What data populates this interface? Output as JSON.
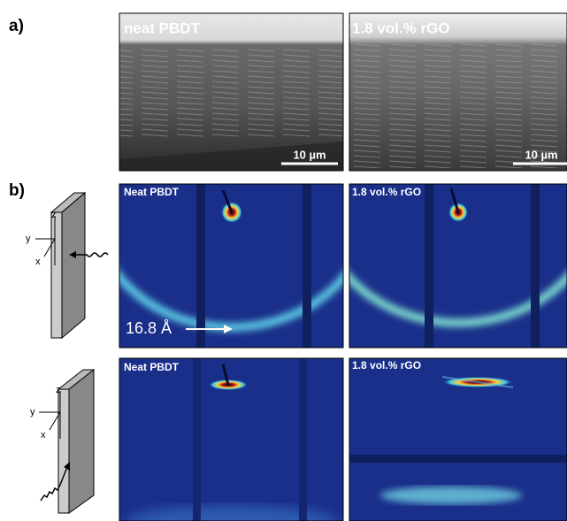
{
  "panel_a": {
    "label": "a)",
    "images": [
      {
        "label": "neat PBDT",
        "scale_bar": "10 µm"
      },
      {
        "label": "1.8 vol.% rGO",
        "scale_bar": "10 µm"
      }
    ]
  },
  "panel_b": {
    "label": "b)",
    "rows": [
      {
        "axes": [
          "z",
          "y",
          "x"
        ],
        "images": [
          {
            "label": "Neat PBDT",
            "annotation": "16.8 Å"
          },
          {
            "label": "1.8 vol.% rGO"
          }
        ]
      },
      {
        "axes": [
          "z",
          "y",
          "x"
        ],
        "images": [
          {
            "label": "Neat PBDT"
          },
          {
            "label": "1.8 vol.% rGO"
          }
        ]
      }
    ]
  }
}
